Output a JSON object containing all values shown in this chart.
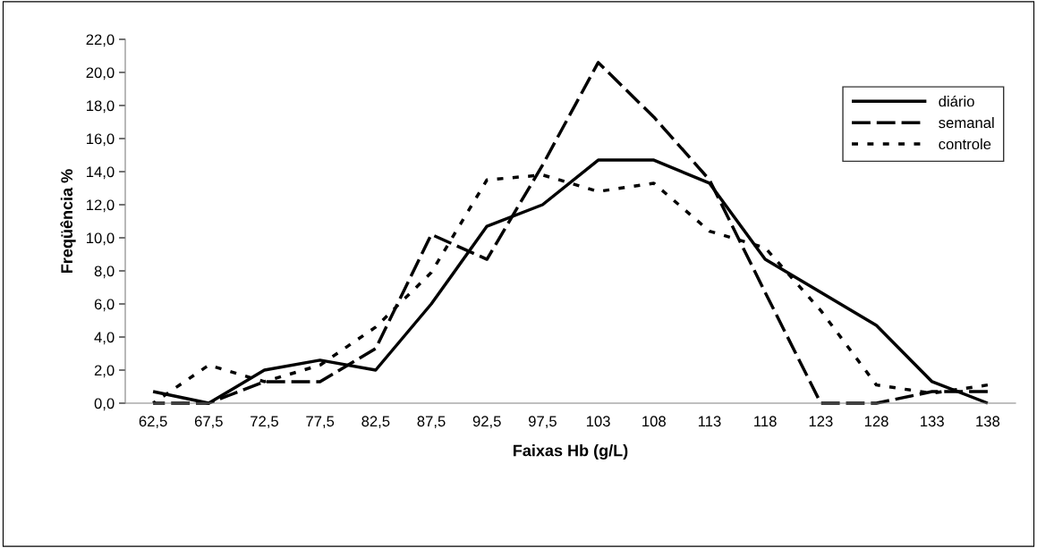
{
  "chart_data": {
    "type": "line",
    "xlabel": "Faixas Hb (g/L)",
    "ylabel": "Freqüência %",
    "categories": [
      "62,5",
      "67,5",
      "72,5",
      "77,5",
      "82,5",
      "87,5",
      "92,5",
      "97,5",
      "103",
      "108",
      "113",
      "118",
      "123",
      "128",
      "133",
      "138"
    ],
    "series": [
      {
        "name": "diário",
        "color": "#000000",
        "line_style": "solid",
        "values": [
          0.7,
          0,
          2.0,
          2.6,
          2.0,
          6.0,
          10.7,
          12.0,
          14.7,
          14.7,
          13.3,
          8.7,
          6.7,
          4.7,
          1.3,
          0
        ]
      },
      {
        "name": "semanal",
        "color": "#000000",
        "line_style": "dashed",
        "values": [
          0,
          0,
          1.3,
          1.3,
          3.3,
          10.2,
          8.7,
          14.4,
          20.6,
          17.3,
          13.5,
          6.7,
          0,
          0,
          0.7,
          0.7
        ]
      },
      {
        "name": "controle",
        "color": "#000000",
        "line_style": "dotted",
        "values": [
          0,
          2.3,
          1.3,
          2.3,
          4.6,
          7.9,
          13.5,
          13.8,
          12.8,
          13.3,
          10.4,
          9.4,
          5.6,
          1.1,
          0.6,
          1.1
        ]
      }
    ],
    "ylim": [
      0,
      22
    ],
    "yticks": [
      {
        "value": 0,
        "label": "0,0"
      },
      {
        "value": 2,
        "label": "2,0"
      },
      {
        "value": 4,
        "label": "4,0"
      },
      {
        "value": 6,
        "label": "6,0"
      },
      {
        "value": 8,
        "label": "8,0"
      },
      {
        "value": 10,
        "label": "10,0"
      },
      {
        "value": 12,
        "label": "12,0"
      },
      {
        "value": 14,
        "label": "14,0"
      },
      {
        "value": 16,
        "label": "16,0"
      },
      {
        "value": 18,
        "label": "18,0"
      },
      {
        "value": 20,
        "label": "20,0"
      },
      {
        "value": 22,
        "label": "22,0"
      }
    ],
    "grid": false,
    "legend": "top right",
    "marker": "none"
  }
}
